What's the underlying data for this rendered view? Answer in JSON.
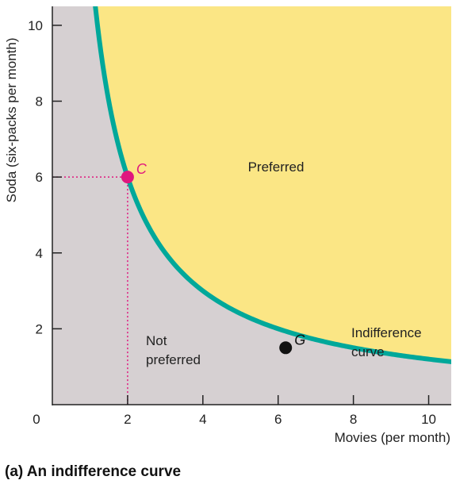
{
  "chart_data": {
    "type": "line",
    "title": "(a) An indifference curve",
    "xlabel": "Movies (per month)",
    "ylabel": "Soda (six-packs per month)",
    "xlim": [
      0,
      10.6
    ],
    "ylim": [
      0,
      10.5
    ],
    "xticks": [
      0,
      2,
      4,
      6,
      8,
      10
    ],
    "yticks": [
      2,
      4,
      6,
      8,
      10
    ],
    "origin_label": "0",
    "grid": false,
    "series": [
      {
        "name": "Indifference curve",
        "equation": "y = 12 / x",
        "x_range": [
          1.1,
          10.6
        ]
      }
    ],
    "points": [
      {
        "label": "C",
        "x": 2,
        "y": 6,
        "guides": true,
        "guide_x_label": "2",
        "guide_y_label": "6"
      },
      {
        "label": "G",
        "x": 6.2,
        "y": 1.5
      }
    ],
    "regions": {
      "preferred": "Preferred",
      "not_preferred_line1": "Not",
      "not_preferred_line2": "preferred",
      "curve_label_line1": "Indifference",
      "curve_label_line2": "curve"
    },
    "colors": {
      "curve": "#00a89a",
      "preferred_fill": "#fbe685",
      "not_preferred_fill": "#d6d0d2",
      "point_c": "#e0177e",
      "point_g": "#111111",
      "axis": "#222222"
    }
  }
}
